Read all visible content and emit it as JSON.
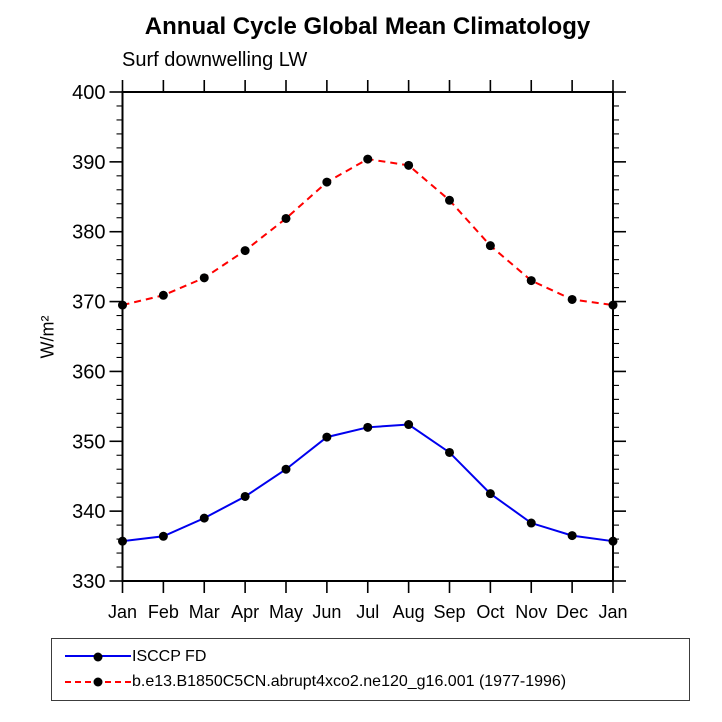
{
  "header": {
    "title": "Annual Cycle Global Mean Climatology",
    "subtitle": "Surf downwelling LW"
  },
  "chart_data": {
    "type": "line",
    "categories": [
      "Jan",
      "Feb",
      "Mar",
      "Apr",
      "May",
      "Jun",
      "Jul",
      "Aug",
      "Sep",
      "Oct",
      "Nov",
      "Dec",
      "Jan"
    ],
    "series": [
      {
        "name": "ISCCP FD",
        "color": "#0000ee",
        "line_style": "solid",
        "marker": "filled-circle",
        "marker_color": "#000000",
        "values": [
          335.7,
          336.4,
          339.0,
          342.1,
          346.0,
          350.6,
          352.0,
          352.4,
          348.4,
          342.5,
          338.3,
          336.5,
          335.7
        ]
      },
      {
        "name": "b.e13.B1850C5CN.abrupt4xco2.ne120_g16.001 (1977-1996)",
        "color": "#ff0000",
        "line_style": "dashed",
        "marker": "filled-circle",
        "marker_color": "#000000",
        "values": [
          369.5,
          370.9,
          373.4,
          377.3,
          381.9,
          387.1,
          390.4,
          389.5,
          384.5,
          378.0,
          373.0,
          370.3,
          369.5
        ]
      }
    ],
    "title": "Annual Cycle Global Mean Climatology",
    "subtitle": "Surf downwelling LW",
    "xlabel": "",
    "ylabel": "W/m²",
    "ylim": [
      330,
      400
    ],
    "ytick_major_step": 10,
    "ytick_minor_step": 2,
    "ytick_labels": [
      "330",
      "340",
      "350",
      "360",
      "370",
      "380",
      "390",
      "400"
    ],
    "grid": false,
    "legend_position": "bottom-left",
    "axis_color": "#000000"
  }
}
